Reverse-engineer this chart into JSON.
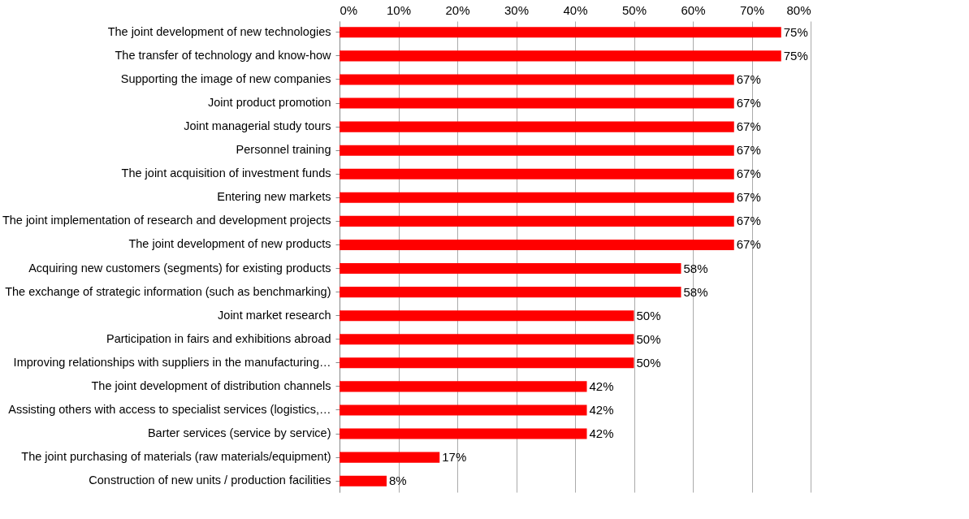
{
  "chart_data": {
    "type": "bar",
    "orientation": "horizontal",
    "categories": [
      "The joint development of new technologies",
      "The transfer of technology and know-how",
      "Supporting the image of new companies",
      "Joint product promotion",
      "Joint managerial study tours",
      "Personnel training",
      "The joint acquisition of investment funds",
      "Entering new markets",
      "The joint implementation of research and development projects",
      "The joint development of new products",
      "Acquiring new customers (segments) for existing products",
      "The exchange of strategic information (such as benchmarking)",
      "Joint market research",
      "Participation in fairs and exhibitions abroad",
      "Improving relationships with suppliers in the manufacturing…",
      "The joint development of distribution channels",
      "Assisting others with access to specialist services (logistics,…",
      "Barter services (service by service)",
      "The joint purchasing of materials (raw materials/equipment)",
      "Construction of new units / production facilities"
    ],
    "values": [
      75,
      75,
      67,
      67,
      67,
      67,
      67,
      67,
      67,
      67,
      58,
      58,
      50,
      50,
      50,
      42,
      42,
      42,
      17,
      8
    ],
    "value_labels": [
      "75%",
      "75%",
      "67%",
      "67%",
      "67%",
      "67%",
      "67%",
      "67%",
      "67%",
      "67%",
      "58%",
      "58%",
      "50%",
      "50%",
      "50%",
      "42%",
      "42%",
      "42%",
      "17%",
      "8%"
    ],
    "color": "#ff0000",
    "xlim": [
      0,
      80
    ],
    "xticks": [
      {
        "value": 0,
        "label": "0%"
      },
      {
        "value": 10,
        "label": "10%"
      },
      {
        "value": 20,
        "label": "20%"
      },
      {
        "value": 30,
        "label": "30%"
      },
      {
        "value": 40,
        "label": "40%"
      },
      {
        "value": 50,
        "label": "50%"
      },
      {
        "value": 60,
        "label": "60%"
      },
      {
        "value": 70,
        "label": "70%"
      },
      {
        "value": 80,
        "label": "80%"
      }
    ],
    "grid": "x"
  }
}
